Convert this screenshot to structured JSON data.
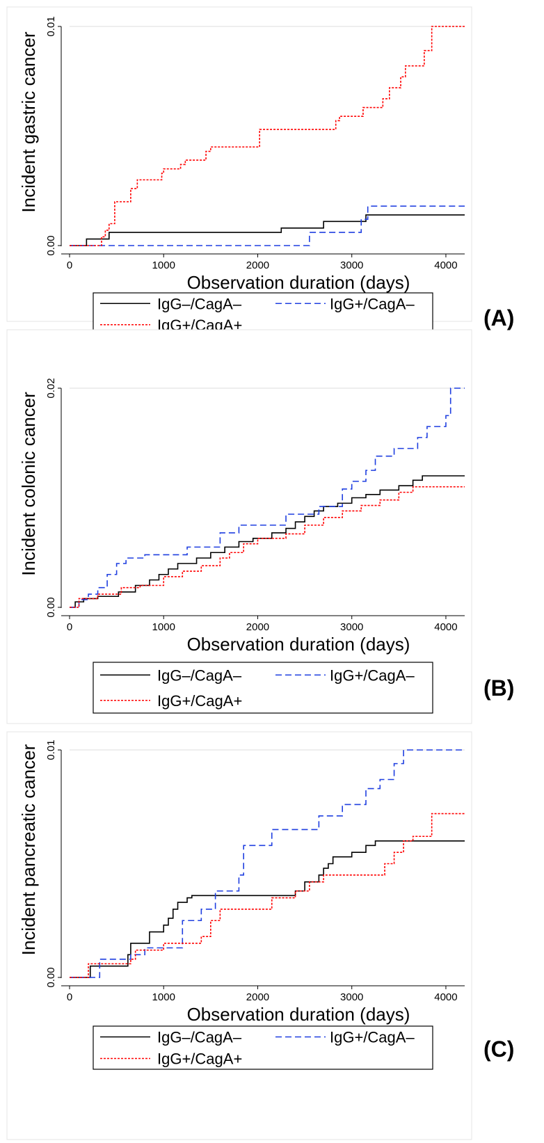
{
  "figure": {
    "xlabel": "Observation duration (days)",
    "x_ticks": [
      "0",
      "1000",
      "2000",
      "3000",
      "4000"
    ]
  },
  "legend": {
    "entries": [
      {
        "name": "IgG–/CagA–",
        "color": "#000000",
        "dash": "solid"
      },
      {
        "name": "IgG+/CagA–",
        "color": "#1f3fe0",
        "dash": "dashed"
      },
      {
        "name": "IgG+/CagA+",
        "color": "#ff0000",
        "dash": "dotted"
      }
    ]
  },
  "chart_data": [
    {
      "type": "line",
      "step": true,
      "panel_label": "(A)",
      "xlabel": "Observation duration (days)",
      "ylabel": "Incident gastric cancer",
      "xlim": [
        0,
        4200
      ],
      "ylim": [
        0,
        0.01
      ],
      "y_ticks": [
        "0.00",
        "0.01"
      ],
      "x_ticks": [
        0,
        1000,
        2000,
        3000,
        4000
      ],
      "grid": true,
      "legend_position": "bottom",
      "series": [
        {
          "name": "IgG–/CagA–",
          "color": "#000000",
          "dash": "solid",
          "x": [
            0,
            180,
            420,
            2250,
            2700,
            3150,
            4200
          ],
          "y": [
            0,
            0.0003,
            0.0006,
            0.0008,
            0.0011,
            0.0014,
            0.0014
          ]
        },
        {
          "name": "IgG+/CagA–",
          "color": "#1f3fe0",
          "dash": "dashed",
          "x": [
            0,
            2550,
            3100,
            3170,
            4200
          ],
          "y": [
            0,
            0.0006,
            0.0012,
            0.0018,
            0.0018
          ]
        },
        {
          "name": "IgG+/CagA+",
          "color": "#ff0000",
          "dash": "dotted",
          "x": [
            0,
            340,
            380,
            420,
            480,
            650,
            720,
            980,
            1000,
            1180,
            1230,
            1450,
            1500,
            2020,
            2830,
            2870,
            3120,
            3330,
            3400,
            3520,
            3570,
            3770,
            3850,
            4200
          ],
          "y": [
            0,
            0.0004,
            0.0007,
            0.001,
            0.002,
            0.0026,
            0.003,
            0.0033,
            0.0035,
            0.0037,
            0.0039,
            0.0043,
            0.0045,
            0.0053,
            0.0057,
            0.0059,
            0.0063,
            0.0067,
            0.0072,
            0.0077,
            0.0082,
            0.0089,
            0.01,
            0.01
          ]
        }
      ]
    },
    {
      "type": "line",
      "step": true,
      "panel_label": "(B)",
      "xlabel": "Observation duration (days)",
      "ylabel": "Incident colonic cancer",
      "xlim": [
        0,
        4200
      ],
      "ylim": [
        0,
        0.02
      ],
      "y_ticks": [
        "0.00",
        "0.02"
      ],
      "x_ticks": [
        0,
        1000,
        2000,
        3000,
        4000
      ],
      "grid": true,
      "legend_position": "bottom",
      "series": [
        {
          "name": "IgG–/CagA–",
          "color": "#000000",
          "dash": "solid",
          "x": [
            0,
            60,
            150,
            300,
            520,
            700,
            850,
            950,
            1050,
            1150,
            1350,
            1500,
            1650,
            1800,
            1950,
            2150,
            2300,
            2400,
            2500,
            2600,
            2700,
            2850,
            3000,
            3150,
            3300,
            3500,
            3650,
            3750,
            4200
          ],
          "y": [
            0,
            0.0005,
            0.0008,
            0.001,
            0.0014,
            0.002,
            0.0025,
            0.003,
            0.0035,
            0.004,
            0.0045,
            0.005,
            0.0055,
            0.006,
            0.0063,
            0.0068,
            0.0072,
            0.0078,
            0.0083,
            0.0088,
            0.0092,
            0.0095,
            0.01,
            0.0103,
            0.0107,
            0.0111,
            0.0116,
            0.012,
            0.012
          ]
        },
        {
          "name": "IgG+/CagA–",
          "color": "#1f3fe0",
          "dash": "dashed",
          "x": [
            0,
            100,
            200,
            300,
            400,
            500,
            600,
            800,
            1250,
            1600,
            1800,
            2300,
            2650,
            2900,
            3000,
            3150,
            3250,
            3450,
            3700,
            3800,
            4000,
            4050,
            4200
          ],
          "y": [
            0,
            0.0007,
            0.0012,
            0.0018,
            0.003,
            0.004,
            0.0045,
            0.0048,
            0.0055,
            0.0068,
            0.0075,
            0.0085,
            0.0092,
            0.0108,
            0.0115,
            0.0125,
            0.0138,
            0.0145,
            0.0155,
            0.0165,
            0.0175,
            0.02,
            0.02
          ]
        },
        {
          "name": "IgG+/CagA+",
          "color": "#ff0000",
          "dash": "dotted",
          "x": [
            0,
            100,
            300,
            550,
            750,
            1000,
            1200,
            1400,
            1600,
            1700,
            1850,
            2000,
            2300,
            2500,
            2700,
            2900,
            3100,
            3300,
            3500,
            3650,
            4200
          ],
          "y": [
            0,
            0.0008,
            0.0012,
            0.0018,
            0.002,
            0.0028,
            0.0033,
            0.0038,
            0.0045,
            0.005,
            0.0058,
            0.0063,
            0.0067,
            0.0075,
            0.0082,
            0.0088,
            0.0093,
            0.0098,
            0.0105,
            0.011,
            0.011
          ]
        }
      ]
    },
    {
      "type": "line",
      "step": true,
      "panel_label": "(C)",
      "xlabel": "Observation duration (days)",
      "ylabel": "Incident pancreatic cancer",
      "xlim": [
        0,
        4200
      ],
      "ylim": [
        0,
        0.01
      ],
      "y_ticks": [
        "0.00",
        "0.01"
      ],
      "x_ticks": [
        0,
        1000,
        2000,
        3000,
        4000
      ],
      "grid": true,
      "legend_position": "bottom",
      "series": [
        {
          "name": "IgG–/CagA–",
          "color": "#000000",
          "dash": "solid",
          "x": [
            0,
            220,
            620,
            650,
            850,
            1000,
            1050,
            1100,
            1150,
            1250,
            1300,
            1700,
            2400,
            2500,
            2650,
            2700,
            2750,
            2800,
            3000,
            3150,
            3250,
            3400,
            4200
          ],
          "y": [
            0,
            0.0005,
            0.001,
            0.0015,
            0.002,
            0.0023,
            0.0026,
            0.003,
            0.0033,
            0.0035,
            0.0036,
            0.0036,
            0.0038,
            0.0042,
            0.0045,
            0.0048,
            0.005,
            0.0053,
            0.0055,
            0.0058,
            0.006,
            0.006,
            0.006
          ]
        },
        {
          "name": "IgG+/CagA–",
          "color": "#1f3fe0",
          "dash": "dashed",
          "x": [
            0,
            320,
            650,
            800,
            1200,
            1400,
            1550,
            1800,
            1850,
            2150,
            2650,
            2900,
            3150,
            3300,
            3350,
            3450,
            3550,
            4200
          ],
          "y": [
            0,
            0.0008,
            0.001,
            0.0013,
            0.0025,
            0.003,
            0.0038,
            0.0045,
            0.0058,
            0.0065,
            0.0071,
            0.0076,
            0.0083,
            0.0087,
            0.0087,
            0.0094,
            0.01,
            0.01
          ]
        },
        {
          "name": "IgG+/CagA+",
          "color": "#ff0000",
          "dash": "dotted",
          "x": [
            0,
            200,
            650,
            700,
            1000,
            1400,
            1500,
            1600,
            2100,
            2150,
            2400,
            2550,
            2700,
            3350,
            3450,
            3550,
            3650,
            3850,
            4200
          ],
          "y": [
            0,
            0.0006,
            0.0008,
            0.0012,
            0.0015,
            0.0018,
            0.0025,
            0.003,
            0.003,
            0.0035,
            0.0038,
            0.0042,
            0.0045,
            0.005,
            0.0055,
            0.006,
            0.0062,
            0.0072,
            0.0072
          ]
        }
      ]
    }
  ]
}
